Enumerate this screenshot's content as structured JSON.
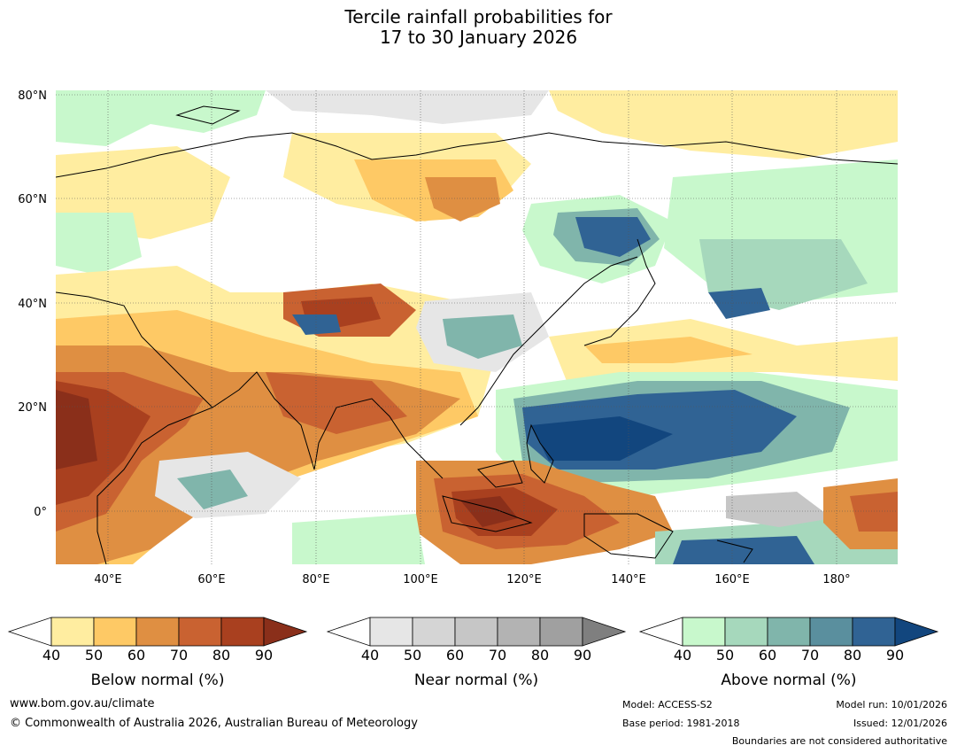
{
  "title": {
    "line1": "Tercile rainfall probabilities for",
    "line2": "17 to 30 January 2026"
  },
  "map": {
    "lat_labels": [
      "80°N",
      "60°N",
      "40°N",
      "20°N",
      "0°"
    ],
    "lon_labels": [
      "40°E",
      "60°E",
      "80°E",
      "100°E",
      "120°E",
      "140°E",
      "160°E",
      "180°"
    ],
    "region": "Asia"
  },
  "colorbars": {
    "below": {
      "label": "Below normal (%)",
      "ticks": [
        "40",
        "50",
        "60",
        "70",
        "80",
        "90"
      ],
      "colors": [
        "#ffeda0",
        "#fec965",
        "#df8f42",
        "#c96231",
        "#a9401f",
        "#8a2f1a"
      ]
    },
    "near": {
      "label": "Near normal (%)",
      "ticks": [
        "40",
        "50",
        "60",
        "70",
        "80",
        "90"
      ],
      "colors": [
        "#e6e6e6",
        "#d5d5d5",
        "#c6c6c6",
        "#b3b3b3",
        "#a0a0a0",
        "#7f7f7f"
      ]
    },
    "above": {
      "label": "Above normal (%)",
      "ticks": [
        "40",
        "50",
        "60",
        "70",
        "80",
        "90"
      ],
      "colors": [
        "#c8f8cc",
        "#a6d8bc",
        "#80b5ab",
        "#5a8f9e",
        "#306394",
        "#12467e"
      ]
    }
  },
  "footer": {
    "website": "www.bom.gov.au/climate",
    "copyright": "© Commonwealth of Australia 2026, Australian Bureau of Meteorology",
    "model": "Model: ACCESS-S2",
    "base_period": "Base period: 1981-2018",
    "model_run": "Model run: 10/01/2026",
    "issued": "Issued: 12/01/2026",
    "disclaimer": "Boundaries are not considered authoritative"
  }
}
